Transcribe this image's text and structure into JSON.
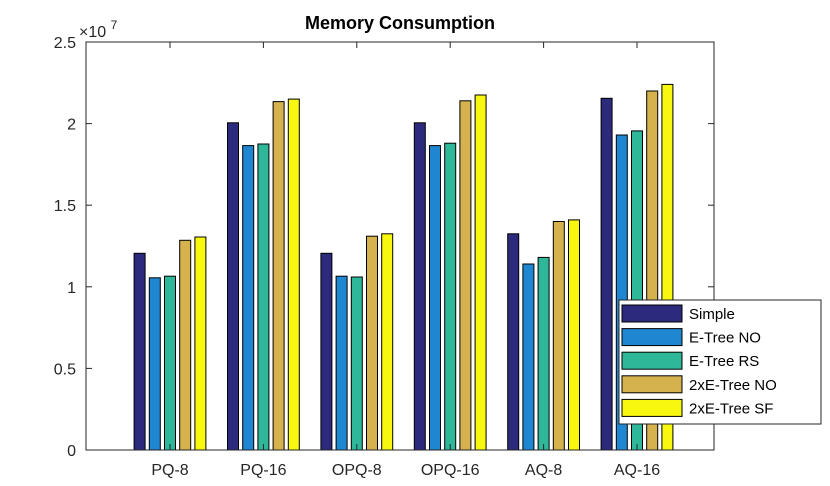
{
  "chart_data": {
    "type": "bar",
    "title": "Memory Consumption",
    "xlabel": "",
    "ylabel": "",
    "exponent_base": "×10",
    "exponent_power": "7",
    "ylim": [
      0,
      2.5
    ],
    "yticks": [
      "0",
      "0.5",
      "1",
      "1.5",
      "2",
      "2.5"
    ],
    "categories": [
      "PQ-8",
      "PQ-16",
      "OPQ-8",
      "OPQ-16",
      "AQ-8",
      "AQ-16"
    ],
    "series": [
      {
        "name": "Simple",
        "color": "#2b2a7d",
        "values": [
          1.205,
          2.005,
          1.205,
          2.005,
          1.325,
          2.155
        ]
      },
      {
        "name": "E-Tree NO",
        "color": "#1f86d1",
        "values": [
          1.055,
          1.865,
          1.065,
          1.865,
          1.14,
          1.93
        ]
      },
      {
        "name": "E-Tree RS",
        "color": "#2fb79a",
        "values": [
          1.065,
          1.875,
          1.06,
          1.88,
          1.18,
          1.955
        ]
      },
      {
        "name": "2xE-Tree NO",
        "color": "#d6b24e",
        "values": [
          1.285,
          2.135,
          1.31,
          2.14,
          1.4,
          2.2
        ]
      },
      {
        "name": "2xE-Tree SF",
        "color": "#f7f70f",
        "values": [
          1.305,
          2.15,
          1.325,
          2.175,
          1.41,
          2.24
        ]
      }
    ],
    "legend_position": "bottom-right",
    "grid": false
  }
}
